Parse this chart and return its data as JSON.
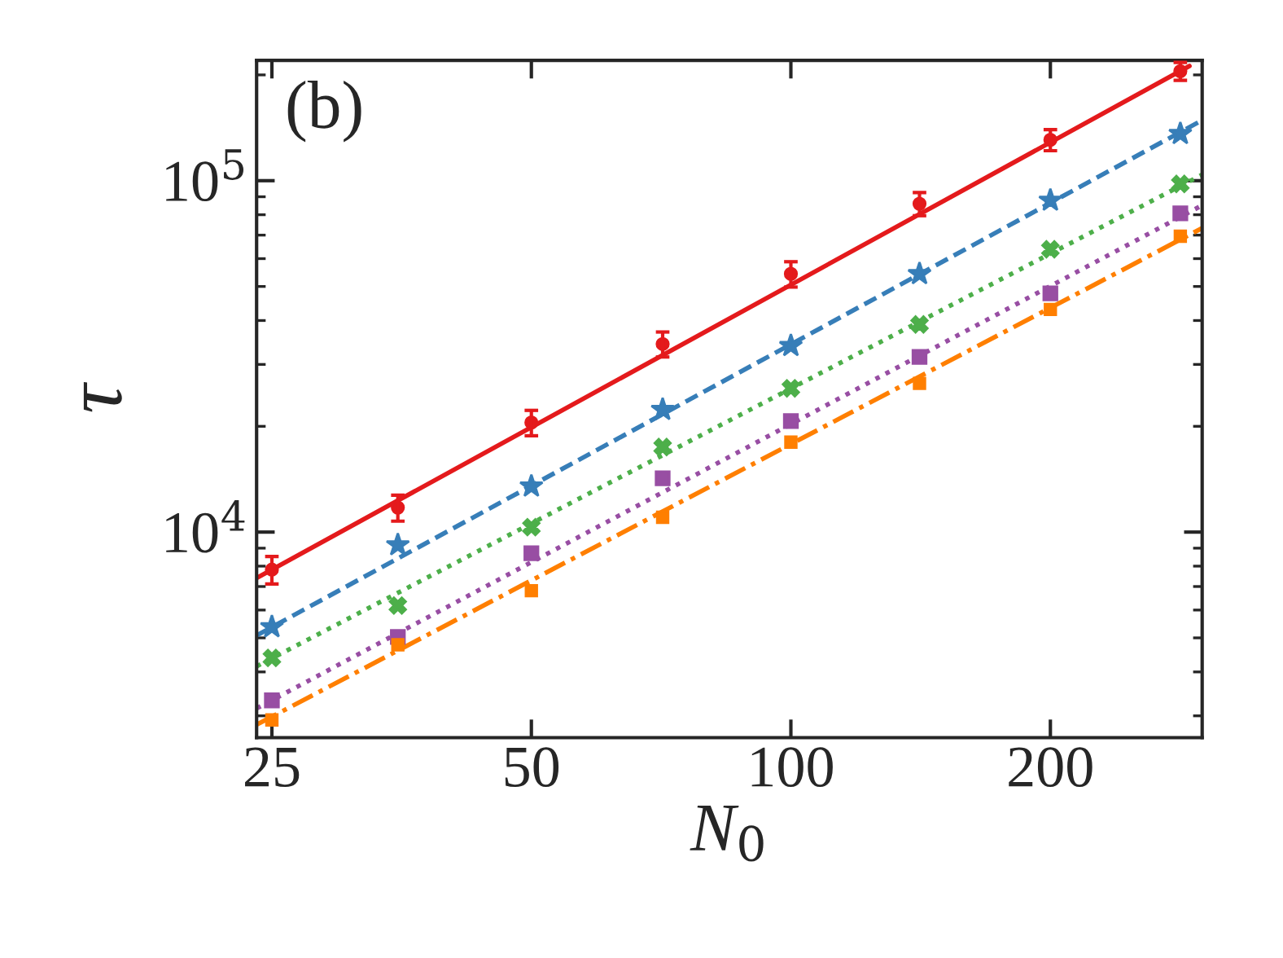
{
  "chart_data": {
    "type": "scatter",
    "xlabel": "N$_{0}$",
    "ylabel": "τ",
    "log": "xy",
    "x": [
      25,
      35,
      50,
      71,
      100,
      141,
      200,
      283
    ],
    "series": [
      {
        "color": "#e41a1c",
        "marker": "circle",
        "values": [
          7820,
          11740,
          20500,
          34300,
          54300,
          86000,
          130700,
          205000
        ],
        "errors": [
          700,
          1000,
          1700,
          2800,
          4500,
          6500,
          9000,
          12000
        ]
      },
      {
        "color": "#377eb8",
        "marker": "star",
        "values": [
          5370,
          9190,
          13500,
          22300,
          33900,
          54300,
          87900,
          136000
        ]
      },
      {
        "color": "#4daf4a",
        "marker": "cross",
        "values": [
          4385,
          6180,
          10330,
          17460,
          25650,
          38990,
          63800,
          97900
        ]
      },
      {
        "color": "#984ea3",
        "marker": "square",
        "values": [
          3320,
          5030,
          8710,
          14230,
          20700,
          31500,
          47800,
          80700
        ]
      },
      {
        "color": "#ff7f00",
        "marker": "square",
        "values": [
          2920,
          4780,
          6810,
          11020,
          18030,
          26500,
          43000,
          69500
        ]
      },
      {
        "type": "line",
        "color": "#e41a1c",
        "line_style": "solid",
        "x": [
          24,
          290
        ],
        "values": [
          7400,
          212000
        ]
      },
      {
        "type": "line",
        "color": "#377eb8",
        "line_style": "dashed",
        "x": [
          24,
          300
        ],
        "values": [
          5080,
          148600
        ]
      },
      {
        "type": "line",
        "color": "#4daf4a",
        "line_style": "dotted",
        "x": [
          24,
          300
        ],
        "values": [
          4150,
          104000
        ]
      },
      {
        "type": "line",
        "color": "#984ea3",
        "line_style": "dotted",
        "x": [
          24,
          300
        ],
        "values": [
          3150,
          85100
        ]
      },
      {
        "type": "line",
        "color": "#ff7f00",
        "line_style": "dashdot",
        "x": [
          24,
          300
        ],
        "values": [
          2830,
          73300
        ]
      }
    ],
    "xlim": [
      24,
      300
    ],
    "xticks": [
      25,
      50,
      100,
      200
    ],
    "ylim": [
      2600,
      220000
    ],
    "yticks": [
      {
        "value": 10000,
        "label": "10$^{4}$"
      },
      {
        "value": 100000,
        "label": "10$^{5}$"
      }
    ],
    "annotations": [
      "(b)"
    ],
    "grid": false
  }
}
